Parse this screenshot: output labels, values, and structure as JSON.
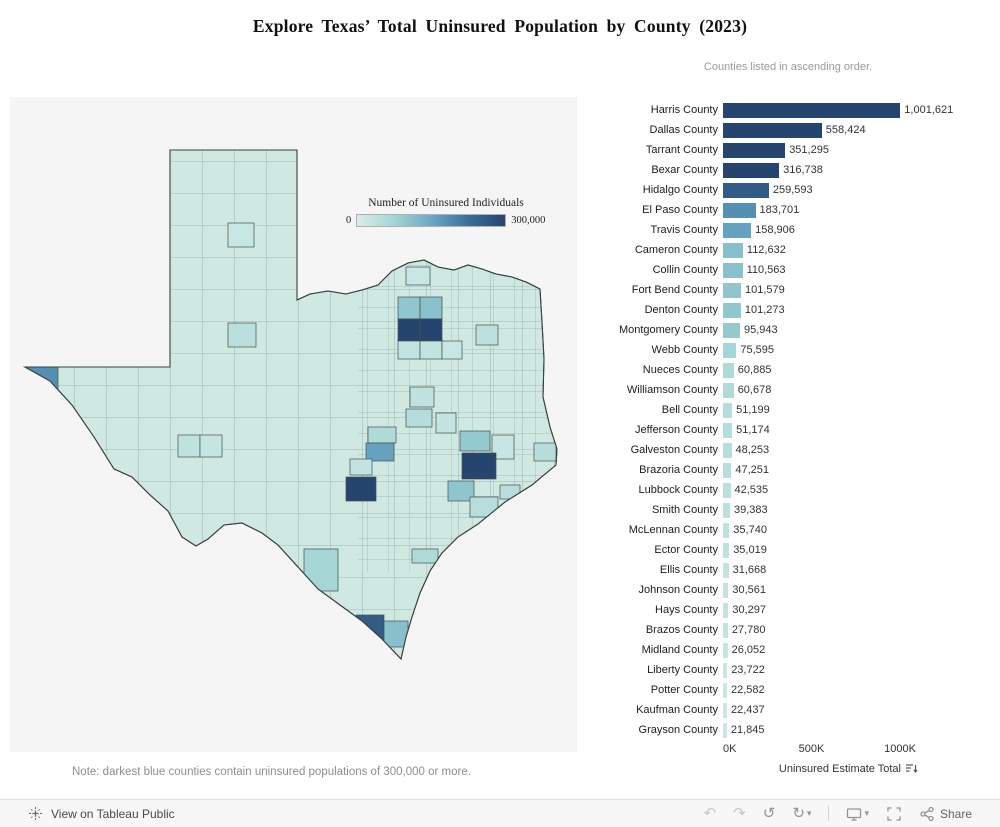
{
  "title": "Explore Texas’ Total Uninsured Population by County (2023)",
  "subtitle": "Counties listed in ascending order.",
  "note": "Note: darkest blue counties contain uninsured populations of 300,000 or more.",
  "legend": {
    "title": "Number of Uninsured Individuals",
    "min_label": "0",
    "max_label": "300,000"
  },
  "colors": {
    "scale": [
      "#d7ede9",
      "#a5d5d4",
      "#6aa9c4",
      "#3b6f9b",
      "#26456e"
    ],
    "base_county": "#cfe8e2",
    "panel_bg": "#f5f5f5"
  },
  "chart_data": {
    "type": "bar",
    "orientation": "horizontal",
    "title": "Explore Texas’ Total Uninsured Population by County (2023)",
    "xlabel": "Uninsured Estimate Total",
    "x_ticks": [
      "0K",
      "500K",
      "1000K"
    ],
    "x_tick_values": [
      0,
      500000,
      1000000
    ],
    "xlim": [
      0,
      1000000
    ],
    "sort": "descending by value, top to bottom",
    "legend_position": "on map, top center",
    "grid": false,
    "color_scale": {
      "min": 0,
      "max": 300000,
      "label": "Number of Uninsured Individuals"
    },
    "categories": [
      "Harris County",
      "Dallas County",
      "Tarrant County",
      "Bexar County",
      "Hidalgo County",
      "El Paso County",
      "Travis County",
      "Cameron County",
      "Collin County",
      "Fort Bend County",
      "Denton County",
      "Montgomery County",
      "Webb County",
      "Nueces County",
      "Williamson County",
      "Bell County",
      "Jefferson County",
      "Galveston County",
      "Brazoria County",
      "Lubbock County",
      "Smith County",
      "McLennan County",
      "Ector County",
      "Ellis County",
      "Johnson County",
      "Hays County",
      "Brazos County",
      "Midland County",
      "Liberty County",
      "Potter County",
      "Kaufman County",
      "Grayson County"
    ],
    "values": [
      1001621,
      558424,
      351295,
      316738,
      259593,
      183701,
      158906,
      112632,
      110563,
      101579,
      101273,
      95943,
      75595,
      60885,
      60678,
      51199,
      51174,
      48253,
      47251,
      42535,
      39383,
      35740,
      35019,
      31668,
      30561,
      30297,
      27780,
      26052,
      23722,
      22582,
      22437,
      21845
    ],
    "value_labels": [
      "1,001,621",
      "558,424",
      "351,295",
      "316,738",
      "259,593",
      "183,701",
      "158,906",
      "112,632",
      "110,563",
      "101,579",
      "101,273",
      "95,943",
      "75,595",
      "60,885",
      "60,678",
      "51,199",
      "51,174",
      "48,253",
      "47,251",
      "42,535",
      "39,383",
      "35,740",
      "35,019",
      "31,668",
      "30,561",
      "30,297",
      "27,780",
      "26,052",
      "23,722",
      "22,582",
      "22,437",
      "21,845"
    ]
  },
  "toolbar": {
    "view_label": "View on Tableau Public",
    "share_label": "Share",
    "glyphs": {
      "undo": "↶",
      "redo": "↷",
      "replay": "↺",
      "refresh": "↻",
      "caret": "▾"
    }
  }
}
